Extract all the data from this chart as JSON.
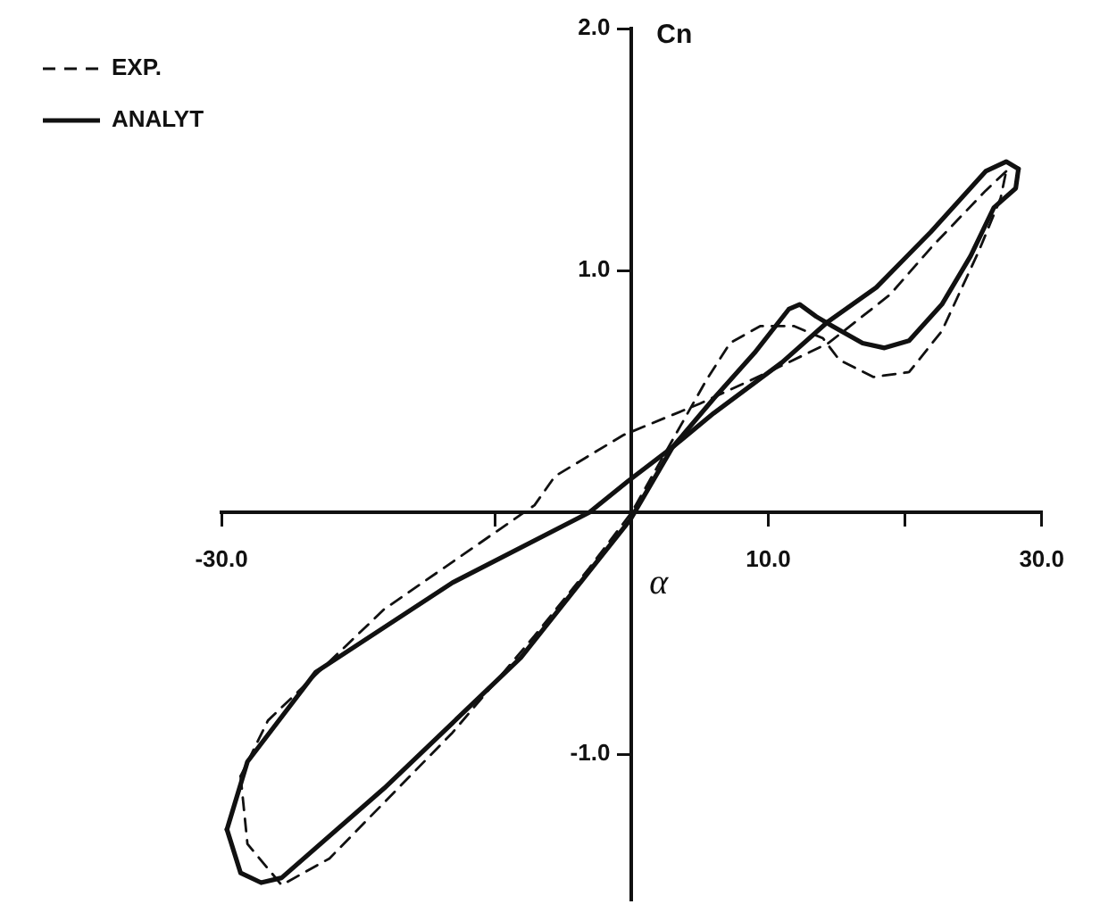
{
  "chart_data": {
    "type": "line",
    "xlabel": "α",
    "ylabel": "Cn",
    "xlim": [
      -30,
      30
    ],
    "ylim": [
      -1.6,
      2.0
    ],
    "xticks": [
      {
        "value": -30,
        "label": "-30.0"
      },
      {
        "value": -10,
        "label": null
      },
      {
        "value": 10,
        "label": "10.0"
      },
      {
        "value": 20,
        "label": null
      },
      {
        "value": 30,
        "label": "30.0"
      }
    ],
    "yticks": [
      {
        "value": -1,
        "label": "-1.0"
      },
      {
        "value": 1,
        "label": "1.0"
      },
      {
        "value": 2,
        "label": "2.0"
      }
    ],
    "grid": false,
    "legend": "top left",
    "marker": "none",
    "series": [
      {
        "name": "EXP.",
        "color": "#111111",
        "line_style": "dashed",
        "x": [
          -28.6,
          -28.1,
          -25.6,
          -22.1,
          -13.1,
          -7.1,
          -3.1,
          0,
          3,
          5.5,
          7.2,
          9.4,
          11.9,
          14,
          15.2,
          17.7,
          20.3,
          22.7,
          25.4,
          27,
          27.4
        ],
        "values": [
          -1.09,
          -1.37,
          -1.54,
          -1.43,
          -0.91,
          -0.51,
          -0.23,
          0,
          0.3,
          0.55,
          0.7,
          0.77,
          0.77,
          0.72,
          0.63,
          0.56,
          0.58,
          0.75,
          1.08,
          1.3,
          1.41
        ]
      },
      {
        "color": "#111111",
        "line_style": "dashed",
        "x": [
          27.4,
          25.9,
          22,
          18.9,
          14.4,
          10,
          5,
          -0.6,
          -5.6,
          -7.1,
          -18.1,
          -26.6,
          -28.6
        ],
        "values": [
          1.41,
          1.33,
          1.1,
          0.9,
          0.7,
          0.58,
          0.45,
          0.32,
          0.15,
          0.03,
          -0.4,
          -0.86,
          -1.09
        ]
      },
      {
        "name": "ANALYT",
        "color": "#111111",
        "line_style": "solid",
        "x": [
          -29.6,
          -28.6,
          -27.1,
          -25.6,
          -18.1,
          -8.1,
          -0.1,
          3,
          6,
          9,
          11.5,
          12.3,
          13.5,
          14.7,
          16.9,
          18.5,
          20.3,
          22.7,
          24.8,
          26.5,
          28.1,
          28.3
        ],
        "values": [
          -1.31,
          -1.49,
          -1.53,
          -1.51,
          -1.14,
          -0.6,
          -0.03,
          0.27,
          0.47,
          0.66,
          0.84,
          0.86,
          0.81,
          0.77,
          0.7,
          0.68,
          0.71,
          0.86,
          1.06,
          1.26,
          1.34,
          1.42
        ]
      },
      {
        "color": "#111111",
        "line_style": "solid",
        "x": [
          28.3,
          27.4,
          25.9,
          21.9,
          17.9,
          14.4,
          11,
          6,
          3,
          -0.25,
          -3.1,
          -13.1,
          -23.1,
          -28.1,
          -29.6
        ],
        "values": [
          1.42,
          1.45,
          1.41,
          1.16,
          0.93,
          0.79,
          0.62,
          0.41,
          0.27,
          0.13,
          0,
          -0.29,
          -0.66,
          -1.03,
          -1.31
        ]
      }
    ]
  }
}
